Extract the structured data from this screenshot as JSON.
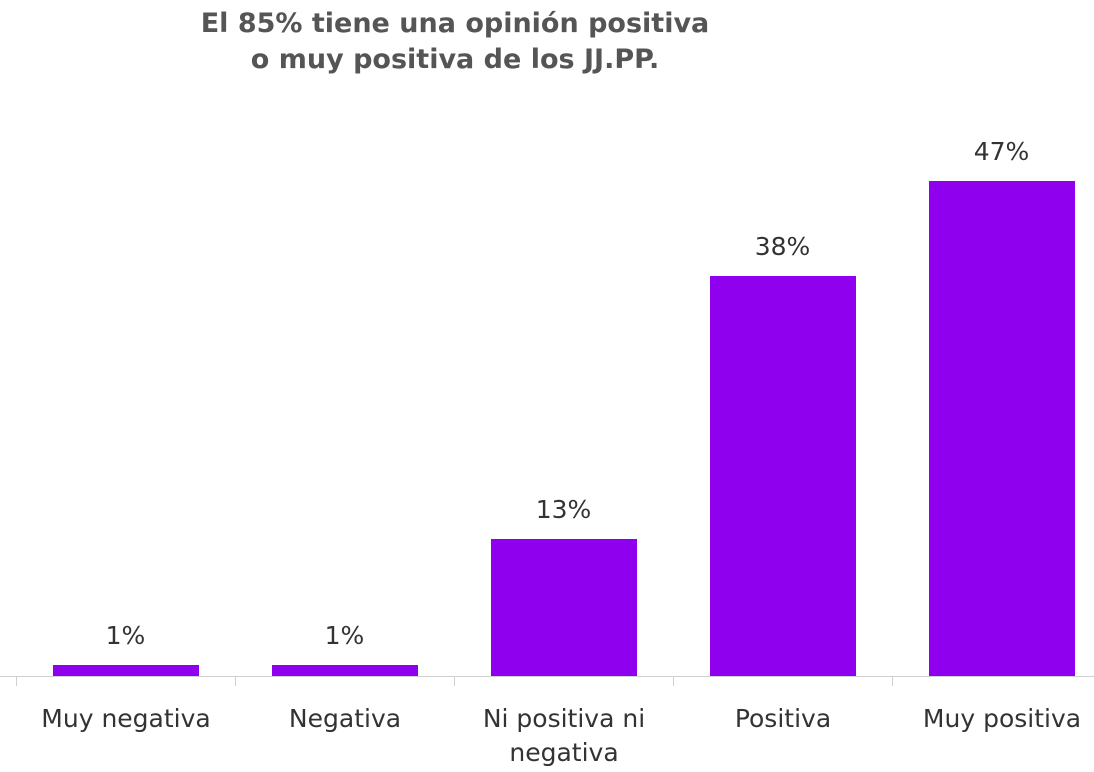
{
  "chart_data": {
    "type": "bar",
    "title": "El 85% tiene una opinión positiva o muy positiva de los JJ.PP.",
    "categories": [
      "Muy negativa",
      "Negativa",
      "Ni positiva ni negativa",
      "Positiva",
      "Muy positiva"
    ],
    "values": [
      1,
      1,
      13,
      38,
      47
    ],
    "value_labels": [
      "1%",
      "1%",
      "13%",
      "38%",
      "47%"
    ],
    "color": "#8f00ee"
  }
}
